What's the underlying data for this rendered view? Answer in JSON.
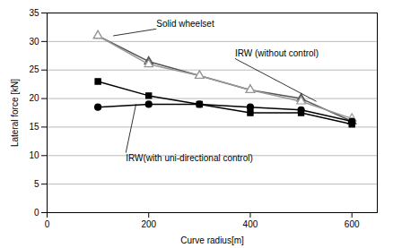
{
  "chart_data": {
    "type": "line",
    "x": [
      100,
      200,
      300,
      400,
      500,
      600
    ],
    "series": [
      {
        "color": "#555555",
        "marker": "triangle",
        "line_style": "solid",
        "values": [
          31.0,
          26.5,
          24.0,
          21.5,
          20.0,
          16.0
        ]
      },
      {
        "color": "#999999",
        "marker": "triangle_open",
        "line_style": "solid",
        "values": [
          31.0,
          26.0,
          24.0,
          21.5,
          19.5,
          16.5
        ]
      },
      {
        "color": "#000000",
        "marker": "square",
        "line_style": "solid",
        "values": [
          23.0,
          20.5,
          19.0,
          17.5,
          17.5,
          15.5
        ]
      },
      {
        "color": "#000000",
        "marker": "circle",
        "line_style": "solid",
        "values": [
          18.5,
          19.0,
          19.0,
          18.5,
          18.0,
          16.0
        ]
      }
    ],
    "xlabel": "Curve radius[m]",
    "ylabel": "Lateral force [kN]",
    "xlim": [
      0,
      650
    ],
    "ylim": [
      0,
      35
    ],
    "xticks": [
      0,
      200,
      400,
      600
    ],
    "yticks": [
      0,
      5,
      10,
      15,
      20,
      25,
      30,
      35
    ],
    "grid": "y",
    "annotations": [
      {
        "text": "Solid wheelset",
        "x": 130,
        "y": 31.0,
        "text_x": 215,
        "text_y": 32.2
      },
      {
        "text": "IRW (without control)",
        "x": 530,
        "y": 19.5,
        "text_x": 370,
        "text_y": 27.0
      },
      {
        "text": "IRW(with uni-directional control)",
        "x": 175,
        "y": 19.0,
        "text_x": 155,
        "text_y": 10.5
      }
    ]
  }
}
